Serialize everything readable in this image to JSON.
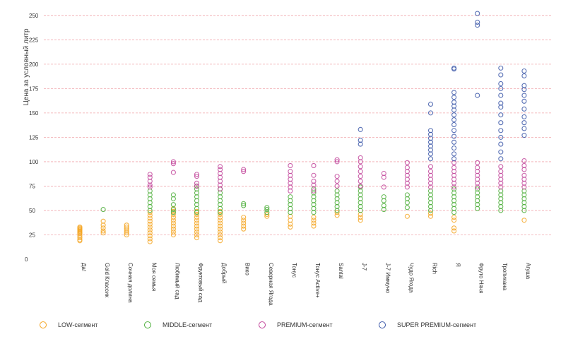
{
  "chart_data": {
    "type": "scatter",
    "title": "",
    "xlabel": "",
    "ylabel": "Цена за условный литр",
    "ylim": [
      0,
      260
    ],
    "yticks": [
      0,
      25,
      50,
      75,
      100,
      125,
      150,
      175,
      200,
      225,
      250
    ],
    "grid": true,
    "legend_position": "bottom",
    "categories": [
      "Да!",
      "Gold Классик",
      "Сочная долина",
      "Моя семья",
      "Любимый сад",
      "Фруктовый сад",
      "Добрый",
      "Вико",
      "Северная Ягода",
      "Тонус",
      "Тонус Active+",
      "Santal",
      "J-7",
      "J-7 Иммуно",
      "Чудо Ягода",
      "Rich",
      "Я",
      "Фруто Няня",
      "Тропикана",
      "Агуша"
    ],
    "series": [
      {
        "name": "LOW-сегмент",
        "color": "#f5a623",
        "points": [
          [
            "Да!",
            [
              20,
              22,
              24,
              26,
              27,
              28,
              29,
              30,
              31,
              32,
              33,
              19
            ]
          ],
          [
            "Gold Классик",
            [
              27,
              29,
              32,
              35,
              39
            ]
          ],
          [
            "Сочная долина",
            [
              25,
              27,
              29,
              31,
              33,
              35
            ]
          ],
          [
            "Моя семья",
            [
              18,
              21,
              24,
              27,
              30,
              33,
              36,
              39,
              42,
              45,
              48
            ]
          ],
          [
            "Любимый сад",
            [
              25,
              28,
              31,
              34,
              37,
              40,
              43,
              46,
              49,
              52
            ]
          ],
          [
            "Фруктовый сад",
            [
              22,
              25,
              28,
              31,
              34,
              37,
              40,
              43,
              46,
              49
            ]
          ],
          [
            "Добрый",
            [
              19,
              22,
              25,
              28,
              31,
              34,
              37,
              40,
              43,
              46,
              49
            ]
          ],
          [
            "Вико",
            [
              31,
              34,
              37,
              40,
              43
            ]
          ],
          [
            "Северная Ягода",
            [
              44,
              46
            ]
          ],
          [
            "Тонус",
            [
              33,
              36,
              40,
              44
            ]
          ],
          [
            "Тонус Active+",
            [
              34,
              37,
              40,
              43
            ]
          ],
          [
            "Santal",
            [
              45,
              48
            ]
          ],
          [
            "J-7",
            [
              40,
              43,
              46
            ]
          ],
          [
            "Чудо Ягода",
            [
              44
            ]
          ],
          [
            "Rich",
            [
              44,
              47
            ]
          ],
          [
            "Я",
            [
              29,
              32,
              40,
              43
            ]
          ],
          [
            "Агуша",
            [
              40
            ]
          ]
        ]
      },
      {
        "name": "MIDDLE-сегмент",
        "color": "#4cae3a",
        "points": [
          [
            "Gold Классик",
            [
              51
            ]
          ],
          [
            "Моя семья",
            [
              50,
              54,
              58,
              62,
              66,
              70
            ]
          ],
          [
            "Любимый сад",
            [
              48,
              51,
              56,
              62,
              66
            ]
          ],
          [
            "Фруктовый сад",
            [
              48,
              52,
              56,
              60,
              64,
              68,
              72,
              75
            ]
          ],
          [
            "Добрый",
            [
              48,
              52,
              56,
              60,
              64,
              68,
              72
            ]
          ],
          [
            "Вико",
            [
              55,
              57
            ]
          ],
          [
            "Северная Ягода",
            [
              48,
              51,
              53
            ]
          ],
          [
            "Тонус",
            [
              48,
              52,
              56,
              60,
              64
            ]
          ],
          [
            "Тонус Active+",
            [
              48,
              52,
              56,
              60,
              64,
              68,
              72
            ]
          ],
          [
            "Santal",
            [
              50,
              54,
              58,
              62,
              66,
              70
            ]
          ],
          [
            "J-7",
            [
              50,
              54,
              58,
              62,
              66,
              70,
              74
            ]
          ],
          [
            "J-7 Иммуно",
            [
              51,
              55,
              60,
              64
            ]
          ],
          [
            "Чудо Ягода",
            [
              53,
              58,
              62,
              66
            ]
          ],
          [
            "Rich",
            [
              50,
              54,
              58,
              62,
              66,
              70
            ]
          ],
          [
            "Я",
            [
              48,
              52,
              56,
              60,
              64,
              68,
              72
            ]
          ],
          [
            "Фруто Няня",
            [
              52,
              56,
              60,
              64,
              68,
              72
            ]
          ],
          [
            "Тропикана",
            [
              50,
              54,
              58,
              62,
              66,
              70
            ]
          ],
          [
            "Агуша",
            [
              50,
              54,
              58,
              62,
              66,
              70
            ]
          ]
        ]
      },
      {
        "name": "PREMIUM-сегмент",
        "color": "#c2469b",
        "points": [
          [
            "Моя семья",
            [
              74,
              76,
              80,
              84,
              87
            ]
          ],
          [
            "Любимый сад",
            [
              89,
              98,
              100
            ]
          ],
          [
            "Фруктовый сад",
            [
              75,
              78,
              85,
              87
            ]
          ],
          [
            "Добрый",
            [
              72,
              76,
              80,
              84,
              88,
              92,
              95
            ]
          ],
          [
            "Вико",
            [
              90,
              92
            ]
          ],
          [
            "Тонус",
            [
              70,
              74,
              78,
              82,
              86,
              90,
              96
            ]
          ],
          [
            "Тонус Active+",
            [
              70,
              76,
              80,
              86,
              96
            ]
          ],
          [
            "Santal",
            [
              75,
              80,
              85,
              100,
              102
            ]
          ],
          [
            "J-7",
            [
              75,
              80,
              85,
              90,
              95,
              100,
              104
            ]
          ],
          [
            "J-7 Иммуно",
            [
              74,
              84,
              88
            ]
          ],
          [
            "Чудо Ягода",
            [
              74,
              78,
              82,
              86,
              90,
              94,
              99
            ]
          ],
          [
            "Rich",
            [
              74,
              78,
              82,
              86,
              90,
              95
            ]
          ],
          [
            "Я",
            [
              74,
              78,
              82,
              86,
              90,
              94,
              99
            ]
          ],
          [
            "Фруто Няня",
            [
              74,
              78,
              82,
              86,
              90,
              94,
              99
            ]
          ],
          [
            "Тропикана",
            [
              74,
              78,
              82,
              86,
              90,
              95
            ]
          ],
          [
            "Агуша",
            [
              74,
              78,
              82,
              86,
              92,
              96,
              101
            ]
          ]
        ]
      },
      {
        "name": "SUPER PREMIUM-сегмент",
        "color": "#3b57a8",
        "points": [
          [
            "J-7",
            [
              118,
              122,
              133
            ]
          ],
          [
            "Rich",
            [
              103,
              108,
              112,
              116,
              120,
              124,
              128,
              132,
              150,
              159
            ]
          ],
          [
            "Я",
            [
              103,
              108,
              114,
              120,
              126,
              132,
              138,
              143,
              148,
              153,
              157,
              161,
              166,
              171,
              195,
              196
            ]
          ],
          [
            "Фруто Няня",
            [
              168,
              240,
              243,
              252
            ]
          ],
          [
            "Тропикана",
            [
              103,
              110,
              118,
              125,
              132,
              140,
              148,
              156,
              160,
              168,
              175,
              180,
              189,
              196
            ]
          ],
          [
            "Агуша",
            [
              127,
              134,
              140,
              146,
              154,
              162,
              168,
              174,
              178,
              188,
              193
            ]
          ]
        ]
      }
    ]
  }
}
